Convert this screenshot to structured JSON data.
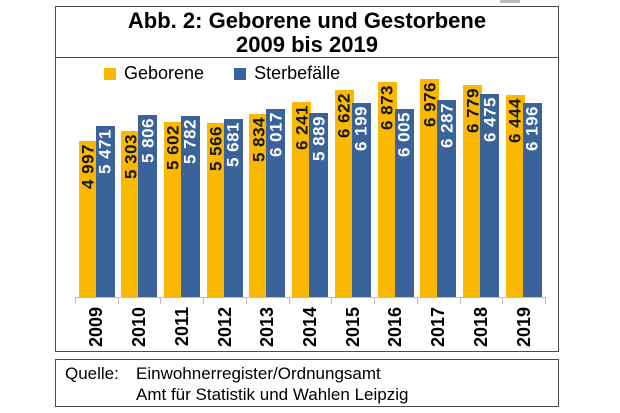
{
  "title": {
    "line1": "Abb. 2: Geborene und Gestorbene",
    "line2": "2009 bis 2019"
  },
  "source": {
    "label": "Quelle:",
    "lines": [
      "Einwohnerregister/Ordnungsamt",
      "Amt für Statistik und Wahlen Leipzig"
    ]
  },
  "chart_data": {
    "type": "bar",
    "title": "Abb. 2: Geborene und Gestorbene 2009 bis 2019",
    "categories": [
      "2009",
      "2010",
      "2011",
      "2012",
      "2013",
      "2014",
      "2015",
      "2016",
      "2017",
      "2018",
      "2019"
    ],
    "series": [
      {
        "name": "Geborene",
        "color": "#FBB800",
        "label_color": "#151515",
        "values": [
          4997,
          5303,
          5602,
          5566,
          5834,
          6241,
          6622,
          6873,
          6976,
          6779,
          6444
        ],
        "labels": [
          "4 997",
          "5 303",
          "5 602",
          "5 566",
          "5 834",
          "6 241",
          "6 622",
          "6 873",
          "6 976",
          "6 779",
          "6 444"
        ]
      },
      {
        "name": "Sterbefälle",
        "color": "#3A629B",
        "label_color": "#ffffff",
        "values": [
          5471,
          5806,
          5782,
          5681,
          6017,
          5889,
          6199,
          6005,
          6287,
          6475,
          6196
        ],
        "labels": [
          "5 471",
          "5 806",
          "5 782",
          "5 681",
          "6 017",
          "5 889",
          "6 199",
          "6 005",
          "6 287",
          "6 475",
          "6 196"
        ]
      }
    ],
    "xlabel": "",
    "ylabel": "",
    "ylim": [
      0,
      7640
    ],
    "gridlines": false,
    "y_axis_visible": false,
    "legend_position": "top-left",
    "value_labels": "rotated 90°, inside bar top, thousands separated by space",
    "axis_color": "#bcbcbc"
  }
}
